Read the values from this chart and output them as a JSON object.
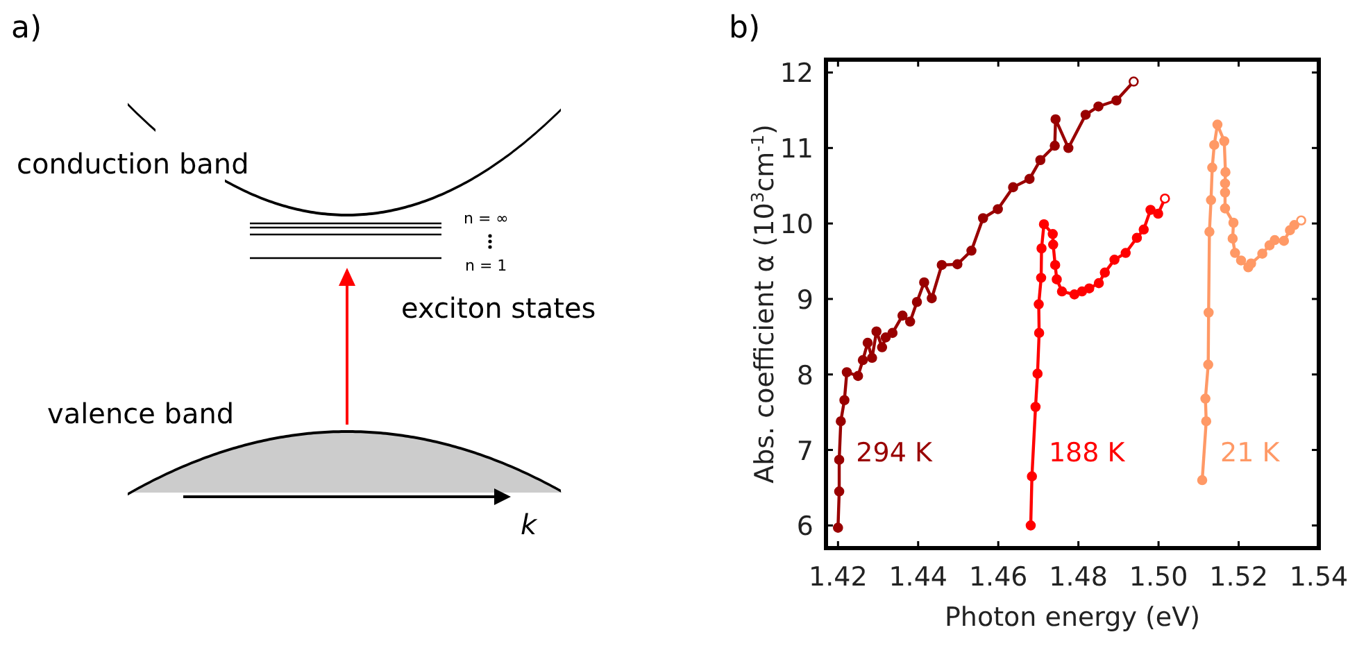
{
  "chart_data": [
    {
      "type": "other",
      "title": "a)",
      "annotations": [
        "conduction band",
        "n = ∞",
        "n = 1",
        "exciton states",
        "valence band",
        "k"
      ]
    },
    {
      "type": "line",
      "title": "b)",
      "xlabel": "Photon energy (eV)",
      "ylabel": "Abs. coefficient α (10$^{3}$cm$^{-1}$)",
      "xlim": [
        1.417,
        1.54
      ],
      "ylim": [
        5.7,
        12.17
      ],
      "xticks": [
        1.42,
        1.44,
        1.46,
        1.48,
        {
          "value": 1.5,
          "label": "1.50"
        },
        1.52,
        1.54
      ],
      "yticks": [
        6,
        7,
        8,
        9,
        10,
        11,
        12
      ],
      "grid": false,
      "marker": "circle",
      "line_style": "solid",
      "series": [
        {
          "name": "294 K",
          "color": "#990000",
          "x": [
            1.42,
            1.4203,
            1.4203,
            1.4207,
            1.4216,
            1.4222,
            1.425,
            1.4262,
            1.4274,
            1.4285,
            1.4296,
            1.431,
            1.4319,
            1.4336,
            1.4361,
            1.438,
            1.4397,
            1.4415,
            1.4434,
            1.4459,
            1.4498,
            1.4533,
            1.4562,
            1.4599,
            1.4637,
            1.4678,
            1.4705,
            1.4741,
            1.4743,
            1.4775,
            1.4818,
            1.485,
            1.4895,
            1.4938
          ],
          "values": [
            5.97,
            6.45,
            6.87,
            7.38,
            7.66,
            8.03,
            7.98,
            8.19,
            8.42,
            8.22,
            8.57,
            8.36,
            8.49,
            8.55,
            8.78,
            8.7,
            8.96,
            9.22,
            9.01,
            9.45,
            9.46,
            9.64,
            10.07,
            10.19,
            10.48,
            10.59,
            10.84,
            11.03,
            11.38,
            11.0,
            11.44,
            11.55,
            11.63,
            11.88
          ]
        },
        {
          "name": "188 K",
          "color": "#ff0000",
          "x": [
            1.4681,
            1.4684,
            1.4693,
            1.4698,
            1.4702,
            1.4701,
            1.4707,
            1.4708,
            1.4714,
            1.4736,
            1.4737,
            1.4742,
            1.4746,
            1.4759,
            1.479,
            1.4809,
            1.4827,
            1.4851,
            1.4866,
            1.489,
            1.4918,
            1.4946,
            1.4963,
            1.498,
            1.4999,
            1.5016
          ],
          "values": [
            6.0,
            6.65,
            7.57,
            8.01,
            8.55,
            8.93,
            9.28,
            9.67,
            9.99,
            9.86,
            9.72,
            9.45,
            9.26,
            9.1,
            9.06,
            9.1,
            9.14,
            9.21,
            9.35,
            9.52,
            9.61,
            9.81,
            9.92,
            10.18,
            10.13,
            10.33
          ]
        },
        {
          "name": "21 K",
          "color": "#ff9966",
          "x": [
            1.5109,
            1.5119,
            1.5117,
            1.5124,
            1.5125,
            1.5127,
            1.5131,
            1.5134,
            1.5139,
            1.5147,
            1.5164,
            1.5167,
            1.5166,
            1.5166,
            1.5166,
            1.5187,
            1.5185,
            1.5191,
            1.5206,
            1.5224,
            1.5231,
            1.5259,
            1.5277,
            1.529,
            1.5313,
            1.5328,
            1.5339,
            1.5356
          ],
          "values": [
            6.6,
            7.38,
            7.68,
            8.13,
            8.82,
            9.89,
            10.31,
            10.74,
            11.04,
            11.31,
            11.09,
            10.68,
            10.53,
            10.41,
            10.2,
            10.01,
            9.8,
            9.61,
            9.51,
            9.42,
            9.47,
            9.6,
            9.71,
            9.78,
            9.77,
            9.91,
            9.98,
            10.04
          ]
        }
      ]
    }
  ]
}
